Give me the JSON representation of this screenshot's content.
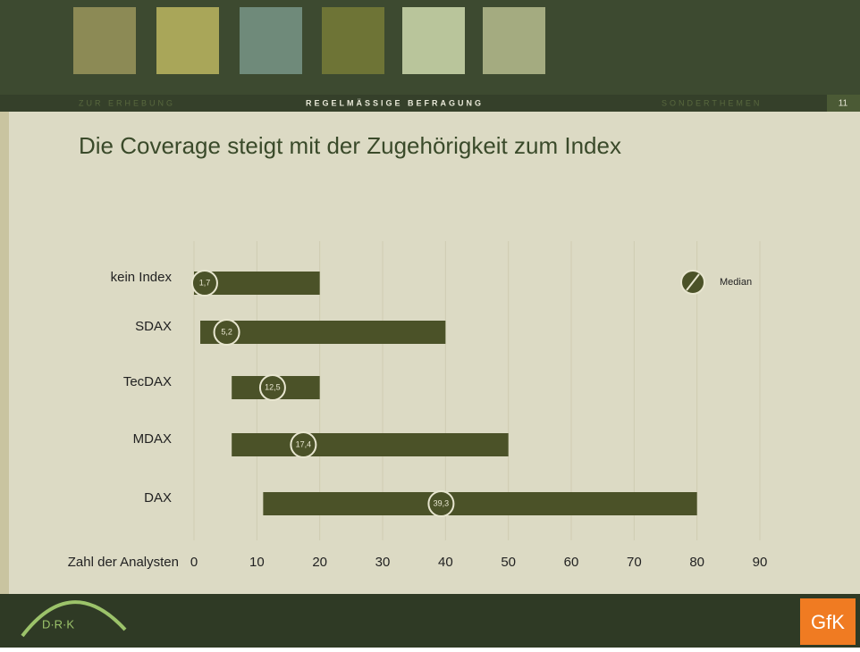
{
  "header": {
    "nav": [
      "ZUR ERHEBUNG",
      "REGELMÄSSIGE BEFRAGUNG",
      "SONDERTHEMEN"
    ],
    "page_number": "11"
  },
  "footer": {
    "logo": "GfK",
    "badge": "D·R·K"
  },
  "chart_data": {
    "type": "range",
    "title": "Die Coverage steigt mit der Zugehörigkeit zum Index",
    "x_label": "Zahl der Analysten",
    "legend_label": "Median",
    "legend_position": "upper right",
    "categories": [
      "kein Index",
      "SDAX",
      "TecDAX",
      "MDAX",
      "DAX"
    ],
    "low": [
      0,
      1,
      6,
      6,
      11
    ],
    "high": [
      20,
      40,
      20,
      50,
      80
    ],
    "values": [
      1.7,
      5.2,
      12.5,
      17.4,
      39.3
    ],
    "value_labels": [
      "1,7",
      "5,2",
      "12,5",
      "17,4",
      "39,3"
    ],
    "color": "#4b5228",
    "xlim": [
      0,
      90
    ],
    "xticks": [
      0,
      10,
      20,
      30,
      40,
      50,
      60,
      70,
      80,
      90
    ],
    "grid": true
  }
}
